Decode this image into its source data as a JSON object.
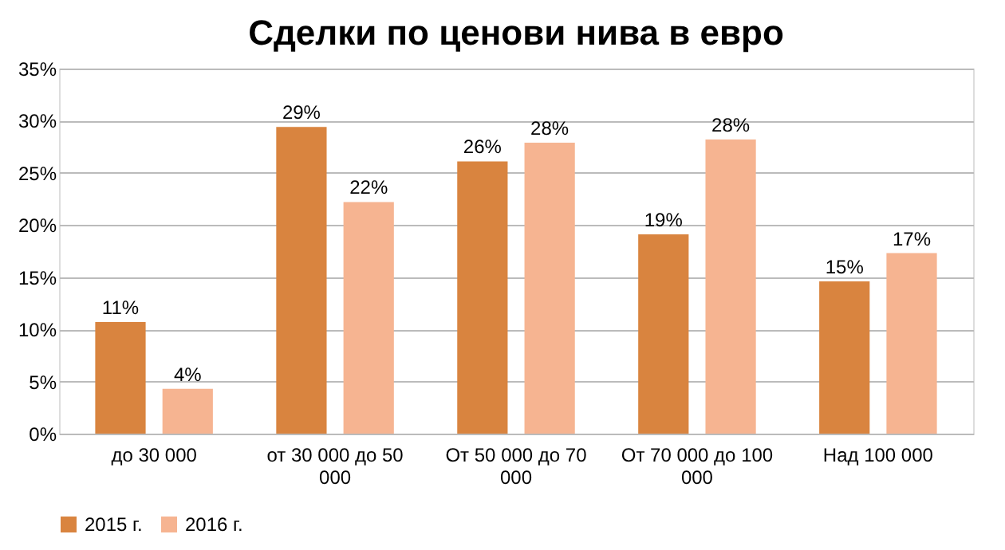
{
  "chart_data": {
    "type": "bar",
    "title": "Сделки по ценови нива в евро",
    "categories": [
      "до 30 000",
      "от 30 000 до 50 000",
      "От 50 000 до 70 000",
      "От 70 000 до 100 000",
      "Над 100 000"
    ],
    "series": [
      {
        "name": "2015 г.",
        "color": "#d9843f",
        "values": [
          10.7,
          29.4,
          26.1,
          19.1,
          14.6
        ],
        "value_labels": [
          "11%",
          "29%",
          "26%",
          "19%",
          "15%"
        ]
      },
      {
        "name": "2016 г.",
        "color": "#f6b491",
        "values": [
          4.3,
          22.2,
          27.9,
          28.2,
          17.3
        ],
        "value_labels": [
          "4%",
          "22%",
          "28%",
          "28%",
          "17%"
        ]
      }
    ],
    "ylim": [
      0,
      35
    ],
    "yticks": [
      {
        "value": 0,
        "label": "0%"
      },
      {
        "value": 5,
        "label": "5%"
      },
      {
        "value": 10,
        "label": "10%"
      },
      {
        "value": 15,
        "label": "15%"
      },
      {
        "value": 20,
        "label": "20%"
      },
      {
        "value": 25,
        "label": "25%"
      },
      {
        "value": 30,
        "label": "30%"
      },
      {
        "value": 35,
        "label": "35%"
      }
    ],
    "grid": "y",
    "legend": "bottom"
  }
}
